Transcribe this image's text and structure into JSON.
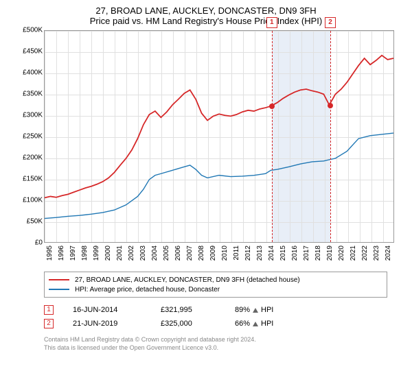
{
  "title": {
    "line1": "27, BROAD LANE, AUCKLEY, DONCASTER, DN9 3FH",
    "line2": "Price paid vs. HM Land Registry's House Price Index (HPI)"
  },
  "chart": {
    "type": "line",
    "background_color": "#ffffff",
    "grid_color": "#e0e0e0",
    "border_color": "#999999",
    "shade_color": "#e8eef7",
    "ylim": [
      0,
      500000
    ],
    "ytick_step": 50000,
    "yticks": [
      "£0",
      "£50K",
      "£100K",
      "£150K",
      "£200K",
      "£250K",
      "£300K",
      "£350K",
      "£400K",
      "£450K",
      "£500K"
    ],
    "xlim": [
      1995,
      2025
    ],
    "xticks": [
      "1995",
      "1996",
      "1997",
      "1998",
      "1999",
      "2000",
      "2001",
      "2002",
      "2003",
      "2004",
      "2005",
      "2006",
      "2007",
      "2008",
      "2009",
      "2010",
      "2011",
      "2012",
      "2013",
      "2014",
      "2015",
      "2016",
      "2017",
      "2018",
      "2019",
      "2020",
      "2021",
      "2022",
      "2023",
      "2024"
    ],
    "shade_range": [
      2014.46,
      2019.47
    ],
    "series": [
      {
        "name": "property",
        "label": "27, BROAD LANE, AUCKLEY, DONCASTER, DN9 3FH (detached house)",
        "color": "#d62728",
        "width": 1.8,
        "points": [
          [
            1995,
            105000
          ],
          [
            1995.5,
            108000
          ],
          [
            1996,
            106000
          ],
          [
            1996.5,
            110000
          ],
          [
            1997,
            113000
          ],
          [
            1997.5,
            118000
          ],
          [
            1998,
            123000
          ],
          [
            1998.5,
            128000
          ],
          [
            1999,
            132000
          ],
          [
            1999.5,
            137000
          ],
          [
            2000,
            143000
          ],
          [
            2000.5,
            152000
          ],
          [
            2001,
            165000
          ],
          [
            2001.5,
            182000
          ],
          [
            2002,
            198000
          ],
          [
            2002.5,
            218000
          ],
          [
            2003,
            245000
          ],
          [
            2003.5,
            278000
          ],
          [
            2004,
            302000
          ],
          [
            2004.5,
            310000
          ],
          [
            2005,
            295000
          ],
          [
            2005.5,
            308000
          ],
          [
            2006,
            325000
          ],
          [
            2006.5,
            338000
          ],
          [
            2007,
            352000
          ],
          [
            2007.5,
            360000
          ],
          [
            2008,
            338000
          ],
          [
            2008.5,
            305000
          ],
          [
            2009,
            288000
          ],
          [
            2009.5,
            298000
          ],
          [
            2010,
            303000
          ],
          [
            2010.5,
            300000
          ],
          [
            2011,
            298000
          ],
          [
            2011.5,
            302000
          ],
          [
            2012,
            308000
          ],
          [
            2012.5,
            312000
          ],
          [
            2013,
            310000
          ],
          [
            2013.5,
            315000
          ],
          [
            2014,
            318000
          ],
          [
            2014.46,
            321995
          ],
          [
            2015,
            330000
          ],
          [
            2015.5,
            340000
          ],
          [
            2016,
            348000
          ],
          [
            2016.5,
            355000
          ],
          [
            2017,
            360000
          ],
          [
            2017.5,
            362000
          ],
          [
            2018,
            358000
          ],
          [
            2018.5,
            355000
          ],
          [
            2019,
            350000
          ],
          [
            2019.47,
            325000
          ],
          [
            2019.48,
            325000
          ],
          [
            2019.8,
            340000
          ],
          [
            2020,
            350000
          ],
          [
            2020.5,
            362000
          ],
          [
            2021,
            378000
          ],
          [
            2021.5,
            398000
          ],
          [
            2022,
            418000
          ],
          [
            2022.5,
            435000
          ],
          [
            2023,
            420000
          ],
          [
            2023.5,
            430000
          ],
          [
            2024,
            442000
          ],
          [
            2024.5,
            432000
          ],
          [
            2025,
            435000
          ]
        ]
      },
      {
        "name": "hpi",
        "label": "HPI: Average price, detached house, Doncaster",
        "color": "#1f77b4",
        "width": 1.4,
        "points": [
          [
            1995,
            56000
          ],
          [
            1996,
            58000
          ],
          [
            1997,
            61000
          ],
          [
            1998,
            63000
          ],
          [
            1999,
            66000
          ],
          [
            2000,
            70000
          ],
          [
            2001,
            76000
          ],
          [
            2002,
            88000
          ],
          [
            2003,
            108000
          ],
          [
            2003.5,
            125000
          ],
          [
            2004,
            148000
          ],
          [
            2004.5,
            158000
          ],
          [
            2005,
            162000
          ],
          [
            2006,
            170000
          ],
          [
            2007,
            178000
          ],
          [
            2007.5,
            182000
          ],
          [
            2008,
            172000
          ],
          [
            2008.5,
            158000
          ],
          [
            2009,
            152000
          ],
          [
            2010,
            158000
          ],
          [
            2011,
            155000
          ],
          [
            2012,
            156000
          ],
          [
            2013,
            158000
          ],
          [
            2014,
            162000
          ],
          [
            2014.46,
            170000
          ],
          [
            2015,
            172000
          ],
          [
            2016,
            178000
          ],
          [
            2017,
            185000
          ],
          [
            2018,
            190000
          ],
          [
            2019,
            192000
          ],
          [
            2019.47,
            195000
          ],
          [
            2020,
            198000
          ],
          [
            2021,
            215000
          ],
          [
            2022,
            245000
          ],
          [
            2023,
            252000
          ],
          [
            2024,
            255000
          ],
          [
            2025,
            258000
          ]
        ]
      }
    ],
    "markers": [
      {
        "n": "1",
        "x": 2014.46,
        "y": 321995,
        "color": "#d62728"
      },
      {
        "n": "2",
        "x": 2019.47,
        "y": 325000,
        "color": "#d62728"
      }
    ]
  },
  "legend": {
    "items": [
      {
        "color": "#d62728",
        "label": "27, BROAD LANE, AUCKLEY, DONCASTER, DN9 3FH (detached house)"
      },
      {
        "color": "#1f77b4",
        "label": "HPI: Average price, detached house, Doncaster"
      }
    ]
  },
  "sales": [
    {
      "n": "1",
      "color": "#d62728",
      "date": "16-JUN-2014",
      "price": "£321,995",
      "pct": "89%",
      "pct_suffix": "HPI"
    },
    {
      "n": "2",
      "color": "#d62728",
      "date": "21-JUN-2019",
      "price": "£325,000",
      "pct": "66%",
      "pct_suffix": "HPI"
    }
  ],
  "footer": {
    "line1": "Contains HM Land Registry data © Crown copyright and database right 2024.",
    "line2": "This data is licensed under the Open Government Licence v3.0."
  }
}
